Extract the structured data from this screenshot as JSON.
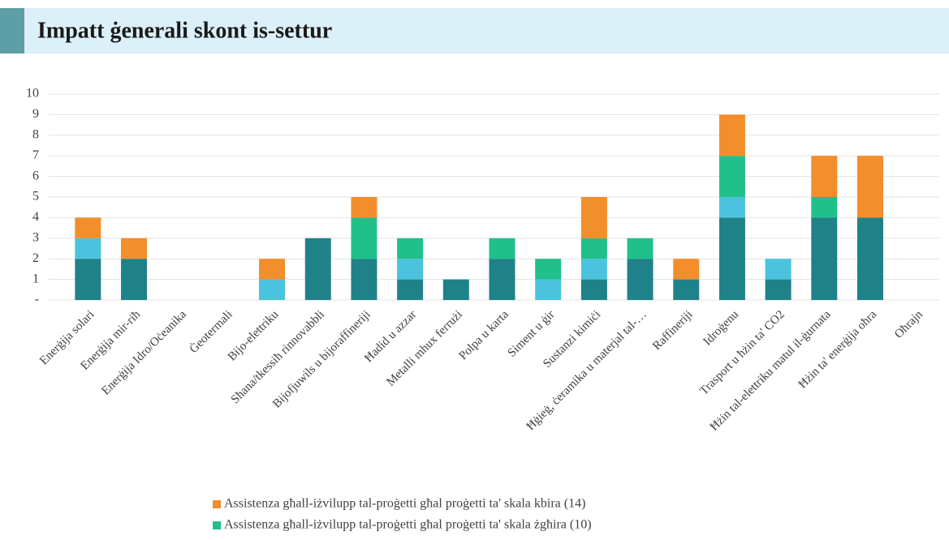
{
  "header": {
    "title": "Impatt ġenerali skont is-settur"
  },
  "chart_data": {
    "type": "stacked_bar",
    "categories": [
      "Enerġija solari",
      "Enerġija mir-riħ",
      "Enerġija Idro/Oċeanika",
      "Ġeotermali",
      "Bijo-elettriku",
      "Sħana/tkessiħ rinnovabbli",
      "Bijofjuwils u bijoraffineriji",
      "Ħadid u azzar",
      "Metalli mhux ferrużi",
      "Polpa u karta",
      "Siment u ġir",
      "Sustanzi kimiċi",
      "Ħġieġ, ċeramika u materjal tal-…",
      "Raffineriji",
      "Idroġenu",
      "Trasport u ħżin ta' CO2",
      "Ħżin tal-elettriku matul il-ġurnata",
      "Ħżin ta' enerġija oħra",
      "Oħrajn"
    ],
    "series": [
      {
        "color": "#1f8289",
        "values": [
          2,
          2,
          0,
          0,
          0,
          3,
          2,
          1,
          1,
          2,
          0,
          1,
          2,
          1,
          4,
          1,
          4,
          4,
          0
        ]
      },
      {
        "color": "#4bc3df",
        "values": [
          1,
          0,
          0,
          0,
          1,
          0,
          0,
          1,
          0,
          0,
          1,
          1,
          0,
          0,
          1,
          1,
          0,
          0,
          0
        ]
      },
      {
        "name": "Assistenza għall-iżvilupp tal-proġetti għal proġetti ta' skala żgħira (10)",
        "color": "#21c08b",
        "values": [
          0,
          0,
          0,
          0,
          0,
          0,
          2,
          1,
          0,
          1,
          1,
          1,
          1,
          0,
          2,
          0,
          1,
          0,
          0
        ]
      },
      {
        "name": "Assistenza għall-iżvilupp tal-proġetti għal proġetti ta' skala kbira (14)",
        "color": "#f28e2b",
        "values": [
          1,
          1,
          0,
          0,
          1,
          0,
          1,
          0,
          0,
          0,
          0,
          2,
          0,
          1,
          2,
          0,
          2,
          3,
          0
        ]
      }
    ],
    "ylim": [
      0,
      10
    ],
    "yticks": [
      {
        "value": 0,
        "label": "-"
      },
      1,
      2,
      3,
      4,
      5,
      6,
      7,
      8,
      9,
      10
    ],
    "grid": true
  }
}
